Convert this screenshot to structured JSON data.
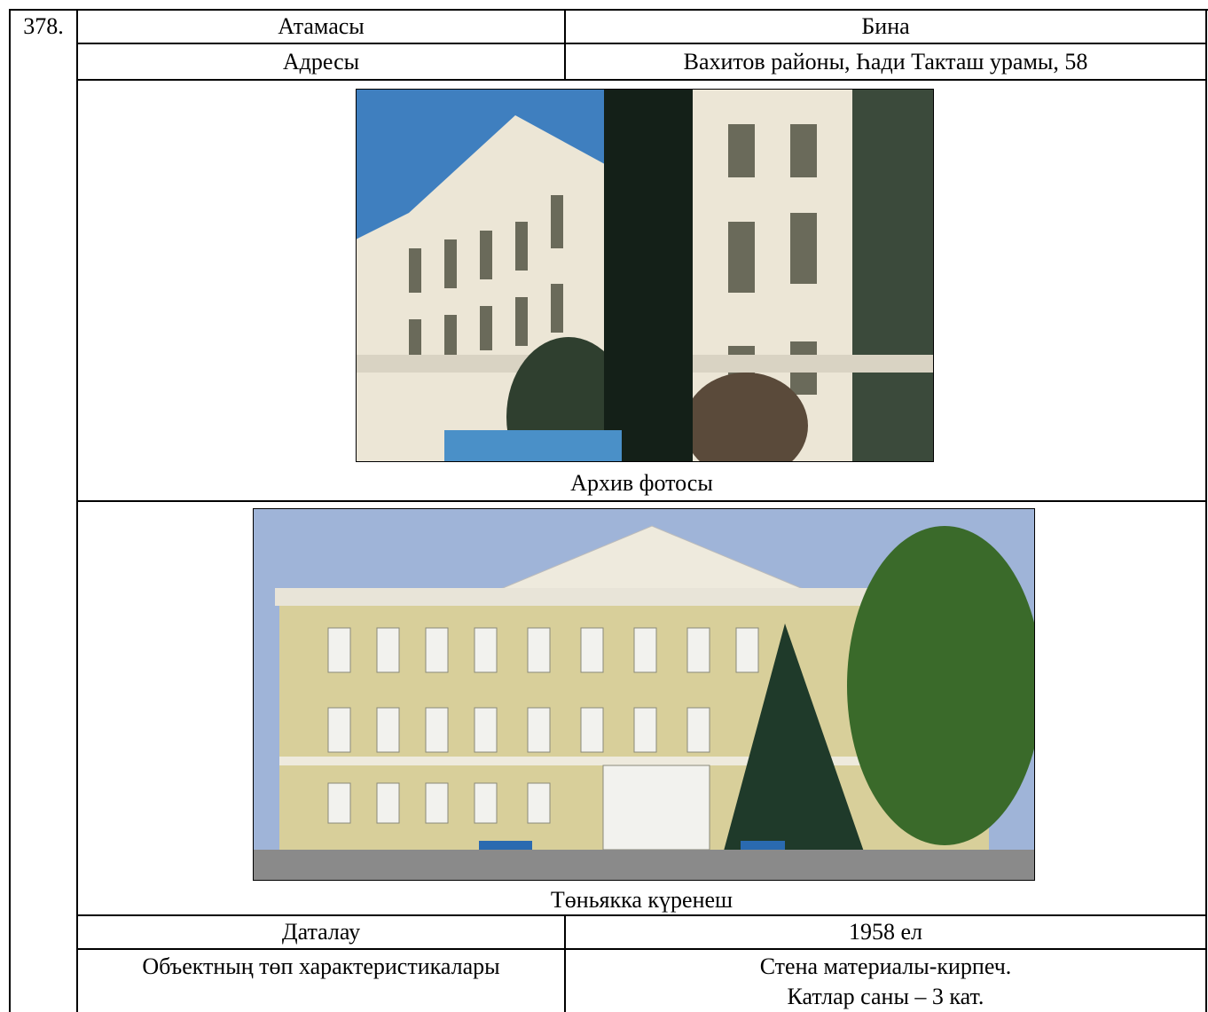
{
  "entry": {
    "number": "378.",
    "name": {
      "label": "Атамасы",
      "value": "Бина"
    },
    "address": {
      "label": "Адресы",
      "value": "Вахитов районы, Һади Такташ урамы, 58"
    },
    "photos": [
      {
        "caption": "Архив фотосы"
      },
      {
        "caption": "Төньякка күренеш"
      }
    ],
    "dating": {
      "label": "Даталау",
      "value": "1958 ел"
    },
    "characteristics": {
      "label": "Объектның төп характеристикалары",
      "lines": [
        "Стена материалы-кирпеч.",
        "Катлар саны – 3 кат."
      ]
    }
  }
}
